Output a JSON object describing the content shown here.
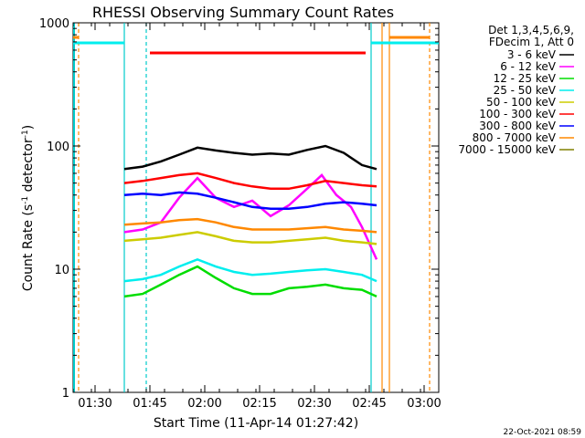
{
  "chart_data": {
    "type": "line",
    "title": "RHESSI Observing Summary Count Rates",
    "xlabel": "Start Time (11-Apr-14 01:27:42)",
    "ylabel_main": "Count Rate (s",
    "ylabel_sup1": "-1",
    "ylabel_mid": " detector",
    "ylabel_sup2": "-1",
    "ylabel_end": ")",
    "y_scale": "log",
    "ylim": [
      1,
      1000
    ],
    "xlim_minutes": [
      84,
      184
    ],
    "x_ticks": [
      {
        "label": "01:30",
        "minute": 90
      },
      {
        "label": "01:45",
        "minute": 105
      },
      {
        "label": "02:00",
        "minute": 120
      },
      {
        "label": "02:15",
        "minute": 135
      },
      {
        "label": "02:30",
        "minute": 150
      },
      {
        "label": "02:45",
        "minute": 165
      },
      {
        "label": "03:00",
        "minute": 180
      }
    ],
    "y_ticks": [
      {
        "label": "1",
        "value": 1
      },
      {
        "label": "10",
        "value": 10
      },
      {
        "label": "100",
        "value": 100
      },
      {
        "label": "1000",
        "value": 1000
      }
    ],
    "legend_header": [
      "Det 1,3,4,5,6,9,",
      "FDecim 1, Att 0"
    ],
    "legend_placement": "right",
    "timestamp": "22-Oct-2021 08:59",
    "series": [
      {
        "name": "3 - 6 keV",
        "color": "#000000",
        "points": [
          [
            98,
            65
          ],
          [
            103,
            68
          ],
          [
            108,
            75
          ],
          [
            113,
            85
          ],
          [
            118,
            97
          ],
          [
            123,
            92
          ],
          [
            128,
            88
          ],
          [
            133,
            85
          ],
          [
            138,
            87
          ],
          [
            143,
            85
          ],
          [
            148,
            93
          ],
          [
            153,
            100
          ],
          [
            158,
            88
          ],
          [
            163,
            70
          ],
          [
            167,
            65
          ]
        ]
      },
      {
        "name": "6 - 12 keV",
        "color": "#ff00ff",
        "points": [
          [
            98,
            20
          ],
          [
            103,
            21
          ],
          [
            108,
            24
          ],
          [
            113,
            38
          ],
          [
            118,
            55
          ],
          [
            123,
            38
          ],
          [
            128,
            32
          ],
          [
            133,
            36
          ],
          [
            138,
            27
          ],
          [
            143,
            33
          ],
          [
            148,
            45
          ],
          [
            152,
            58
          ],
          [
            156,
            40
          ],
          [
            160,
            32
          ],
          [
            163,
            22
          ],
          [
            167,
            12
          ]
        ]
      },
      {
        "name": "12 - 25 keV",
        "color": "#00dd00",
        "points": [
          [
            98,
            6
          ],
          [
            103,
            6.3
          ],
          [
            108,
            7.5
          ],
          [
            113,
            9
          ],
          [
            118,
            10.5
          ],
          [
            123,
            8.5
          ],
          [
            128,
            7
          ],
          [
            133,
            6.3
          ],
          [
            138,
            6.3
          ],
          [
            143,
            7
          ],
          [
            148,
            7.2
          ],
          [
            153,
            7.5
          ],
          [
            158,
            7
          ],
          [
            163,
            6.8
          ],
          [
            167,
            6
          ]
        ]
      },
      {
        "name": "25 - 50 keV",
        "color": "#00eeee",
        "points": [
          [
            98,
            8
          ],
          [
            103,
            8.3
          ],
          [
            108,
            9
          ],
          [
            113,
            10.5
          ],
          [
            118,
            12
          ],
          [
            123,
            10.5
          ],
          [
            128,
            9.5
          ],
          [
            133,
            9
          ],
          [
            138,
            9.2
          ],
          [
            143,
            9.5
          ],
          [
            148,
            9.8
          ],
          [
            153,
            10
          ],
          [
            158,
            9.5
          ],
          [
            163,
            9
          ],
          [
            167,
            8
          ]
        ]
      },
      {
        "name": "50 - 100 keV",
        "color": "#cccc00",
        "points": [
          [
            98,
            17
          ],
          [
            103,
            17.5
          ],
          [
            108,
            18
          ],
          [
            113,
            19
          ],
          [
            118,
            20
          ],
          [
            123,
            18.5
          ],
          [
            128,
            17
          ],
          [
            133,
            16.5
          ],
          [
            138,
            16.5
          ],
          [
            143,
            17
          ],
          [
            148,
            17.5
          ],
          [
            153,
            18
          ],
          [
            158,
            17
          ],
          [
            163,
            16.5
          ],
          [
            167,
            16
          ]
        ]
      },
      {
        "name": "100 - 300 keV",
        "color": "#ff0000",
        "points": [
          [
            98,
            50
          ],
          [
            103,
            52
          ],
          [
            108,
            55
          ],
          [
            113,
            58
          ],
          [
            118,
            60
          ],
          [
            123,
            55
          ],
          [
            128,
            50
          ],
          [
            133,
            47
          ],
          [
            138,
            45
          ],
          [
            143,
            45
          ],
          [
            148,
            48
          ],
          [
            153,
            52
          ],
          [
            158,
            50
          ],
          [
            163,
            48
          ],
          [
            167,
            47
          ]
        ]
      },
      {
        "name": "300 - 800 keV",
        "color": "#0000ff",
        "points": [
          [
            98,
            40
          ],
          [
            103,
            41
          ],
          [
            108,
            40
          ],
          [
            113,
            42
          ],
          [
            118,
            41
          ],
          [
            123,
            38
          ],
          [
            128,
            35
          ],
          [
            133,
            32
          ],
          [
            138,
            31
          ],
          [
            143,
            31
          ],
          [
            148,
            32
          ],
          [
            153,
            34
          ],
          [
            158,
            35
          ],
          [
            163,
            34
          ],
          [
            167,
            33
          ]
        ]
      },
      {
        "name": "800 - 7000 keV",
        "color": "#ff8800",
        "points": [
          [
            98,
            23
          ],
          [
            103,
            23.5
          ],
          [
            108,
            24
          ],
          [
            113,
            25
          ],
          [
            118,
            25.5
          ],
          [
            123,
            24
          ],
          [
            128,
            22
          ],
          [
            133,
            21
          ],
          [
            138,
            21
          ],
          [
            143,
            21
          ],
          [
            148,
            21.5
          ],
          [
            153,
            22
          ],
          [
            158,
            21
          ],
          [
            163,
            20.5
          ],
          [
            167,
            20
          ]
        ]
      },
      {
        "name": "7000 - 15000 keV",
        "color": "#808000",
        "points": []
      }
    ]
  }
}
